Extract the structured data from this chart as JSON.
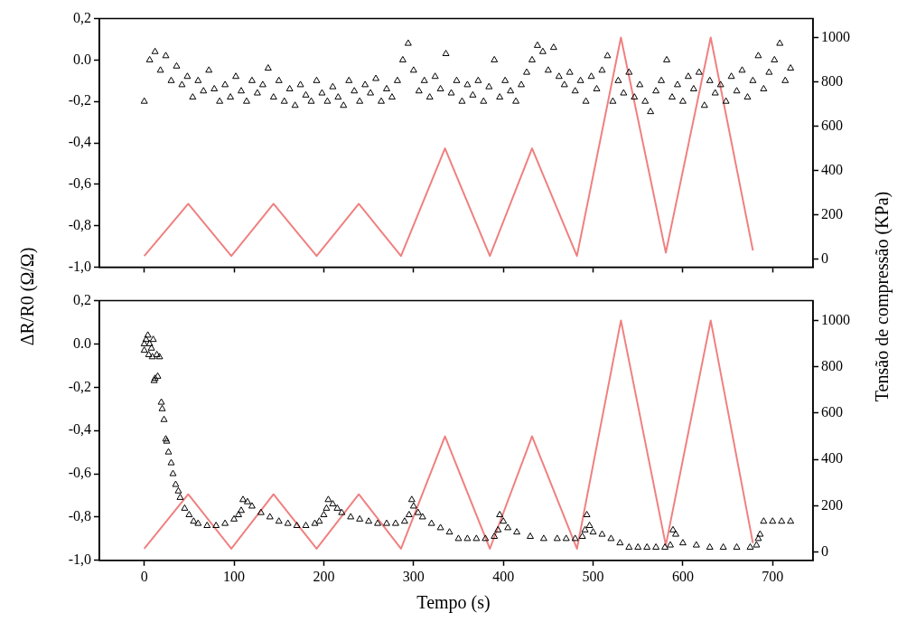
{
  "chart_data": [
    {
      "type": "scatter",
      "ylabel": "ΔR/R0 (Ω/Ω)",
      "y2label": "Tensão de compressão (KPa)",
      "legend": false,
      "grid": false,
      "tick_labels": "y",
      "xlim": [
        -50,
        745
      ],
      "xticks": [
        {
          "value": 0,
          "label": null
        },
        {
          "value": 100,
          "label": null
        },
        {
          "value": 200,
          "label": null
        },
        {
          "value": 300,
          "label": null
        },
        {
          "value": 400,
          "label": null
        },
        {
          "value": 500,
          "label": null
        },
        {
          "value": 600,
          "label": null
        },
        {
          "value": 700,
          "label": null
        }
      ],
      "ylim": [
        -1.0,
        0.2
      ],
      "yticks": [
        {
          "value": -1.0,
          "label": "-1,0"
        },
        {
          "value": -0.8,
          "label": "-0,8"
        },
        {
          "value": -0.6,
          "label": "-0,6"
        },
        {
          "value": -0.4,
          "label": "-0,4"
        },
        {
          "value": -0.2,
          "label": "-0,2"
        },
        {
          "value": 0,
          "label": "0.0"
        },
        {
          "value": 0.2,
          "label": "0,2"
        }
      ],
      "y2lim": [
        -35,
        1085
      ],
      "y2ticks": [
        0,
        200,
        400,
        600,
        800,
        1000
      ],
      "series": [
        {
          "marker": "triangle",
          "color": "#000000",
          "x": [
            0,
            6,
            12,
            18,
            24,
            30,
            36,
            42,
            48,
            54,
            60,
            66,
            72,
            78,
            84,
            90,
            96,
            102,
            108,
            114,
            120,
            126,
            132,
            138,
            144,
            150,
            156,
            162,
            168,
            174,
            180,
            186,
            192,
            198,
            204,
            210,
            216,
            222,
            228,
            234,
            240,
            246,
            252,
            258,
            264,
            270,
            276,
            282,
            288,
            294,
            300,
            306,
            312,
            318,
            324,
            330,
            336,
            342,
            348,
            354,
            360,
            366,
            372,
            378,
            384,
            390,
            396,
            402,
            408,
            414,
            420,
            426,
            432,
            438,
            444,
            450,
            456,
            462,
            468,
            474,
            480,
            486,
            492,
            498,
            504,
            510,
            516,
            522,
            528,
            534,
            540,
            546,
            552,
            558,
            564,
            570,
            576,
            582,
            588,
            594,
            600,
            606,
            612,
            618,
            624,
            630,
            636,
            642,
            648,
            654,
            660,
            666,
            672,
            678,
            684,
            690,
            696,
            702,
            708,
            714,
            720
          ],
          "values": [
            -0.2,
            0.0,
            0.04,
            -0.05,
            0.02,
            -0.1,
            -0.03,
            -0.12,
            -0.08,
            -0.18,
            -0.1,
            -0.15,
            -0.05,
            -0.14,
            -0.2,
            -0.12,
            -0.18,
            -0.08,
            -0.15,
            -0.2,
            -0.1,
            -0.16,
            -0.12,
            -0.04,
            -0.18,
            -0.1,
            -0.2,
            -0.14,
            -0.22,
            -0.12,
            -0.17,
            -0.2,
            -0.1,
            -0.16,
            -0.2,
            -0.13,
            -0.18,
            -0.22,
            -0.1,
            -0.15,
            -0.2,
            -0.12,
            -0.16,
            -0.09,
            -0.2,
            -0.14,
            -0.18,
            -0.1,
            0.0,
            0.08,
            -0.05,
            -0.15,
            -0.1,
            -0.18,
            -0.08,
            -0.14,
            0.03,
            -0.16,
            -0.1,
            -0.2,
            -0.12,
            -0.17,
            -0.1,
            -0.2,
            -0.13,
            0.0,
            -0.18,
            -0.1,
            -0.15,
            -0.2,
            -0.12,
            -0.06,
            0.0,
            0.07,
            0.04,
            -0.05,
            0.06,
            -0.08,
            -0.12,
            -0.06,
            -0.15,
            -0.1,
            -0.2,
            -0.08,
            -0.14,
            -0.05,
            0.02,
            -0.2,
            -0.1,
            -0.16,
            -0.06,
            -0.18,
            -0.12,
            -0.2,
            -0.25,
            -0.15,
            -0.1,
            0.0,
            -0.18,
            -0.12,
            -0.2,
            -0.08,
            -0.14,
            -0.06,
            -0.22,
            -0.1,
            -0.16,
            -0.12,
            -0.2,
            -0.08,
            -0.15,
            -0.05,
            -0.18,
            -0.1,
            0.02,
            -0.14,
            -0.06,
            0.0,
            0.08,
            -0.1,
            -0.04
          ]
        },
        {
          "type": "line",
          "axis": "y2",
          "color": "#f08080",
          "x": [
            0,
            49,
            97,
            144,
            192,
            239,
            286,
            335,
            385,
            432,
            482,
            531,
            581,
            631,
            678
          ],
          "values": [
            15,
            250,
            15,
            250,
            15,
            250,
            15,
            500,
            15,
            500,
            15,
            1000,
            30,
            1000,
            40
          ]
        }
      ]
    },
    {
      "type": "scatter",
      "xlabel": "Tempo (s)",
      "legend": false,
      "grid": false,
      "xlim": [
        -50,
        745
      ],
      "xticks": [
        0,
        100,
        200,
        300,
        400,
        500,
        600,
        700
      ],
      "ylim": [
        -1.0,
        0.2
      ],
      "yticks": [
        {
          "value": -1.0,
          "label": "-1,0"
        },
        {
          "value": -0.8,
          "label": "-0,8"
        },
        {
          "value": -0.6,
          "label": "-0,6"
        },
        {
          "value": -0.4,
          "label": "-0,4"
        },
        {
          "value": -0.2,
          "label": "-0,2"
        },
        {
          "value": 0,
          "label": "0.0"
        },
        {
          "value": 0.2,
          "label": "0,2"
        }
      ],
      "y2lim": [
        -35,
        1085
      ],
      "y2ticks": [
        0,
        200,
        400,
        600,
        800,
        1000
      ],
      "series": [
        {
          "marker": "triangle",
          "color": "#000000",
          "x": [
            0,
            0,
            2,
            4,
            5,
            6,
            8,
            9,
            10,
            11,
            12,
            14,
            15,
            17,
            19,
            20,
            22,
            24,
            25,
            27,
            30,
            32,
            35,
            38,
            40,
            45,
            50,
            55,
            60,
            70,
            80,
            90,
            100,
            105,
            108,
            110,
            115,
            120,
            130,
            140,
            150,
            160,
            170,
            180,
            190,
            195,
            200,
            203,
            205,
            210,
            215,
            220,
            230,
            240,
            250,
            260,
            270,
            280,
            290,
            295,
            298,
            300,
            305,
            310,
            320,
            330,
            340,
            350,
            360,
            370,
            380,
            390,
            394,
            396,
            400,
            405,
            415,
            430,
            445,
            460,
            470,
            480,
            488,
            491,
            493,
            496,
            500,
            510,
            520,
            530,
            540,
            550,
            560,
            570,
            580,
            586,
            589,
            592,
            600,
            615,
            630,
            645,
            660,
            675,
            682,
            684,
            686,
            690,
            700,
            710,
            720
          ],
          "values": [
            0.0,
            -0.03,
            0.02,
            0.04,
            -0.05,
            0.0,
            -0.02,
            -0.06,
            0.02,
            -0.17,
            -0.16,
            -0.05,
            -0.15,
            -0.06,
            -0.27,
            -0.3,
            -0.35,
            -0.44,
            -0.45,
            -0.5,
            -0.55,
            -0.6,
            -0.65,
            -0.68,
            -0.71,
            -0.76,
            -0.79,
            -0.82,
            -0.83,
            -0.84,
            -0.84,
            -0.83,
            -0.81,
            -0.79,
            -0.77,
            -0.72,
            -0.73,
            -0.75,
            -0.78,
            -0.8,
            -0.82,
            -0.83,
            -0.84,
            -0.84,
            -0.83,
            -0.82,
            -0.79,
            -0.76,
            -0.72,
            -0.74,
            -0.76,
            -0.78,
            -0.8,
            -0.81,
            -0.82,
            -0.83,
            -0.83,
            -0.83,
            -0.82,
            -0.79,
            -0.72,
            -0.75,
            -0.78,
            -0.8,
            -0.83,
            -0.85,
            -0.87,
            -0.9,
            -0.9,
            -0.9,
            -0.9,
            -0.89,
            -0.86,
            -0.79,
            -0.82,
            -0.85,
            -0.87,
            -0.89,
            -0.9,
            -0.9,
            -0.9,
            -0.9,
            -0.89,
            -0.86,
            -0.79,
            -0.84,
            -0.87,
            -0.88,
            -0.9,
            -0.92,
            -0.94,
            -0.94,
            -0.94,
            -0.94,
            -0.94,
            -0.93,
            -0.86,
            -0.88,
            -0.92,
            -0.93,
            -0.94,
            -0.94,
            -0.94,
            -0.94,
            -0.93,
            -0.9,
            -0.88,
            -0.82,
            -0.82,
            -0.82,
            -0.82
          ]
        },
        {
          "type": "line",
          "axis": "y2",
          "color": "#f08080",
          "x": [
            0,
            49,
            97,
            144,
            192,
            239,
            286,
            335,
            385,
            432,
            482,
            531,
            581,
            631,
            678
          ],
          "values": [
            15,
            250,
            15,
            250,
            15,
            250,
            15,
            500,
            15,
            500,
            15,
            1000,
            30,
            1000,
            40
          ]
        }
      ]
    }
  ]
}
